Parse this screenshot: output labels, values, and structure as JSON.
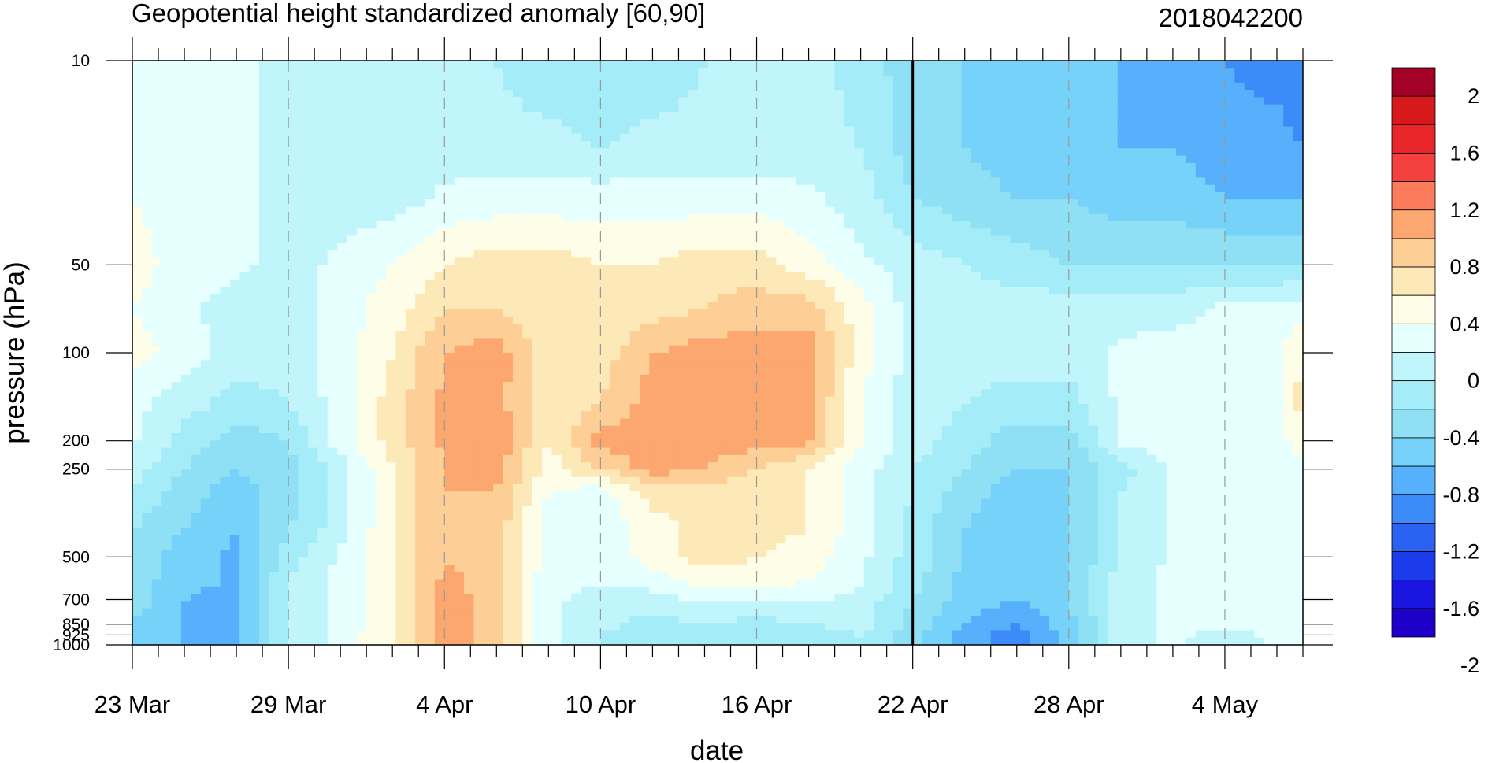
{
  "chart_data": {
    "type": "heatmap",
    "title": "Geopotential height standardized anomaly [60,90]",
    "date_label": "2018042200",
    "xlabel": "date",
    "ylabel": "pressure (hPa)",
    "x_ticks": [
      {
        "label": "23 Mar",
        "day": 0
      },
      {
        "label": "29 Mar",
        "day": 6
      },
      {
        "label": "4 Apr",
        "day": 12
      },
      {
        "label": "10 Apr",
        "day": 18
      },
      {
        "label": "16 Apr",
        "day": 24
      },
      {
        "label": "22 Apr",
        "day": 30
      },
      {
        "label": "28 Apr",
        "day": 36
      },
      {
        "label": "4 May",
        "day": 42
      }
    ],
    "x_range": [
      "23 Mar",
      "8 May"
    ],
    "y_ticks": [
      10,
      50,
      100,
      200,
      250,
      500,
      700,
      850,
      925,
      1000
    ],
    "y_tick_labels": [
      "10",
      "50",
      "100",
      "200",
      "250",
      "500",
      "700",
      "850",
      "925",
      "1000"
    ],
    "y_scale": "log",
    "ylim": [
      1000,
      10
    ],
    "vertical_marker": "22 Apr",
    "colorbar": {
      "labels": [
        "2",
        "1.6",
        "1.2",
        "0.8",
        "0.4",
        "0",
        "-0.4",
        "-0.8",
        "-1.2",
        "-1.6",
        "-2"
      ],
      "colors": [
        "#a50026",
        "#d7191c",
        "#e8262a",
        "#f54040",
        "#fb7b5b",
        "#fca76f",
        "#fdcf96",
        "#fde9b8",
        "#fefde8",
        "#e6ffff",
        "#c0f5fb",
        "#a4ecf8",
        "#8fe0f5",
        "#76d2f8",
        "#56b0fb",
        "#3d8bf8",
        "#2a62f2",
        "#1c3cec",
        "#1a16e0",
        "#1e00c8"
      ]
    },
    "field": {
      "pressures": [
        10,
        20,
        30,
        50,
        70,
        100,
        150,
        200,
        250,
        300,
        400,
        500,
        600,
        700,
        850,
        925,
        1000
      ],
      "days": [
        0,
        2,
        4,
        6,
        8,
        10,
        12,
        14,
        16,
        18,
        20,
        22,
        24,
        26,
        28,
        30,
        32,
        34,
        36,
        38,
        40,
        42,
        44,
        45
      ],
      "values": [
        [
          0.1,
          0.1,
          0.1,
          -0.1,
          -0.1,
          -0.1,
          -0.1,
          -0.2,
          -0.4,
          -0.4,
          -0.4,
          -0.2,
          -0.1,
          -0.1,
          -0.3,
          -0.5,
          -0.6,
          -0.7,
          -0.8,
          -0.8,
          -0.9,
          -1.0,
          -1.1,
          -1.2
        ],
        [
          0.2,
          0.1,
          0.1,
          -0.1,
          -0.1,
          -0.1,
          -0.1,
          -0.1,
          -0.1,
          -0.2,
          -0.1,
          -0.1,
          -0.1,
          -0.1,
          -0.2,
          -0.5,
          -0.6,
          -0.7,
          -0.7,
          -0.8,
          -0.8,
          -0.9,
          -0.9,
          -1.0
        ],
        [
          0.2,
          0.1,
          0.1,
          -0.1,
          -0.1,
          -0.1,
          0.05,
          0.1,
          0.1,
          0.1,
          0.1,
          0.1,
          0.1,
          0.05,
          -0.1,
          -0.4,
          -0.5,
          -0.6,
          -0.6,
          -0.7,
          -0.7,
          -0.8,
          -0.8,
          -0.8
        ],
        [
          0.3,
          0.1,
          0.05,
          -0.1,
          0.05,
          0.2,
          0.4,
          0.5,
          0.5,
          0.4,
          0.4,
          0.5,
          0.5,
          0.3,
          0.05,
          -0.1,
          -0.2,
          -0.3,
          -0.4,
          -0.4,
          -0.4,
          -0.4,
          -0.4,
          -0.4
        ],
        [
          0.2,
          0.05,
          -0.1,
          -0.1,
          0.1,
          0.3,
          0.6,
          0.6,
          0.4,
          0.4,
          0.5,
          0.6,
          0.7,
          0.7,
          0.3,
          -0.1,
          -0.1,
          -0.1,
          -0.1,
          -0.1,
          -0.1,
          0.05,
          0.05,
          0.1
        ],
        [
          0.3,
          0.1,
          -0.1,
          -0.1,
          0.1,
          0.4,
          0.8,
          0.9,
          0.5,
          0.5,
          0.8,
          0.9,
          0.9,
          0.9,
          0.3,
          -0.1,
          -0.1,
          -0.1,
          -0.1,
          0.05,
          0.1,
          0.1,
          0.15,
          0.4
        ],
        [
          0.05,
          -0.1,
          -0.3,
          -0.2,
          0.1,
          0.5,
          0.85,
          0.9,
          0.4,
          0.6,
          0.9,
          0.9,
          0.9,
          0.85,
          0.2,
          -0.1,
          -0.2,
          -0.3,
          -0.3,
          0.05,
          0.1,
          0.1,
          0.15,
          0.5
        ],
        [
          0.05,
          -0.3,
          -0.5,
          -0.4,
          0.1,
          0.5,
          0.85,
          0.95,
          0.4,
          0.9,
          0.9,
          0.9,
          0.9,
          0.85,
          0.2,
          -0.1,
          -0.3,
          -0.5,
          -0.5,
          0.05,
          0.1,
          0.1,
          0.1,
          0.3
        ],
        [
          -0.1,
          -0.4,
          -0.6,
          -0.5,
          -0.1,
          0.4,
          0.8,
          0.9,
          0.3,
          0.6,
          0.9,
          0.8,
          0.6,
          0.4,
          0.1,
          -0.2,
          -0.4,
          -0.6,
          -0.6,
          -0.3,
          0.05,
          0.05,
          0.1,
          0.1
        ],
        [
          -0.2,
          -0.5,
          -0.7,
          -0.5,
          -0.1,
          0.4,
          0.8,
          0.8,
          0.2,
          0.1,
          0.5,
          0.5,
          0.5,
          0.4,
          0.1,
          -0.2,
          -0.5,
          -0.7,
          -0.6,
          -0.2,
          0.05,
          0.05,
          0.05,
          0.05
        ],
        [
          -0.4,
          -0.6,
          -0.8,
          -0.4,
          -0.1,
          0.4,
          0.8,
          0.7,
          0.1,
          0.05,
          0.3,
          0.5,
          0.5,
          0.4,
          0.1,
          -0.3,
          -0.6,
          -0.8,
          -0.6,
          -0.2,
          0.05,
          0.05,
          0.05,
          0.05
        ],
        [
          -0.5,
          -0.7,
          -0.85,
          -0.3,
          0.05,
          0.4,
          0.8,
          0.7,
          0.1,
          0.05,
          0.3,
          0.5,
          0.4,
          0.3,
          0.05,
          -0.3,
          -0.6,
          -0.8,
          -0.6,
          -0.2,
          0.05,
          0.05,
          0.05,
          0.05
        ],
        [
          -0.5,
          -0.7,
          -0.85,
          -0.2,
          0.05,
          0.4,
          0.85,
          0.7,
          0.05,
          0.05,
          0.1,
          0.3,
          0.3,
          0.2,
          0.05,
          -0.3,
          -0.7,
          -0.8,
          -0.6,
          -0.1,
          0.05,
          0.05,
          0.05,
          0.05
        ],
        [
          -0.5,
          -0.8,
          -0.9,
          -0.2,
          0.05,
          0.4,
          0.9,
          0.7,
          0.05,
          -0.1,
          -0.1,
          0.05,
          0.05,
          0.05,
          -0.1,
          -0.4,
          -0.7,
          -0.8,
          -0.6,
          -0.1,
          0.05,
          0.05,
          0.05,
          0.05
        ],
        [
          -0.6,
          -0.8,
          -0.9,
          -0.2,
          0.05,
          0.4,
          0.9,
          0.7,
          0.05,
          -0.1,
          -0.3,
          -0.2,
          -0.3,
          -0.2,
          -0.1,
          -0.5,
          -0.8,
          -1.0,
          -0.7,
          -0.1,
          0.05,
          0.05,
          0.05,
          0.05
        ],
        [
          -0.6,
          -0.8,
          -0.9,
          -0.2,
          0.1,
          0.4,
          0.9,
          0.7,
          0.05,
          -0.2,
          -0.4,
          -0.3,
          -0.4,
          -0.3,
          -0.2,
          -0.5,
          -0.9,
          -1.1,
          -0.7,
          -0.1,
          0.05,
          -0.1,
          0.05,
          0.05
        ],
        [
          -0.6,
          -0.8,
          -0.9,
          -0.2,
          0.1,
          0.4,
          0.9,
          0.7,
          0.05,
          -0.2,
          -0.4,
          -0.3,
          -0.4,
          -0.3,
          -0.2,
          -0.5,
          -0.9,
          -1.1,
          -0.7,
          -0.1,
          0.05,
          -0.1,
          0.05,
          0.05
        ]
      ]
    }
  }
}
